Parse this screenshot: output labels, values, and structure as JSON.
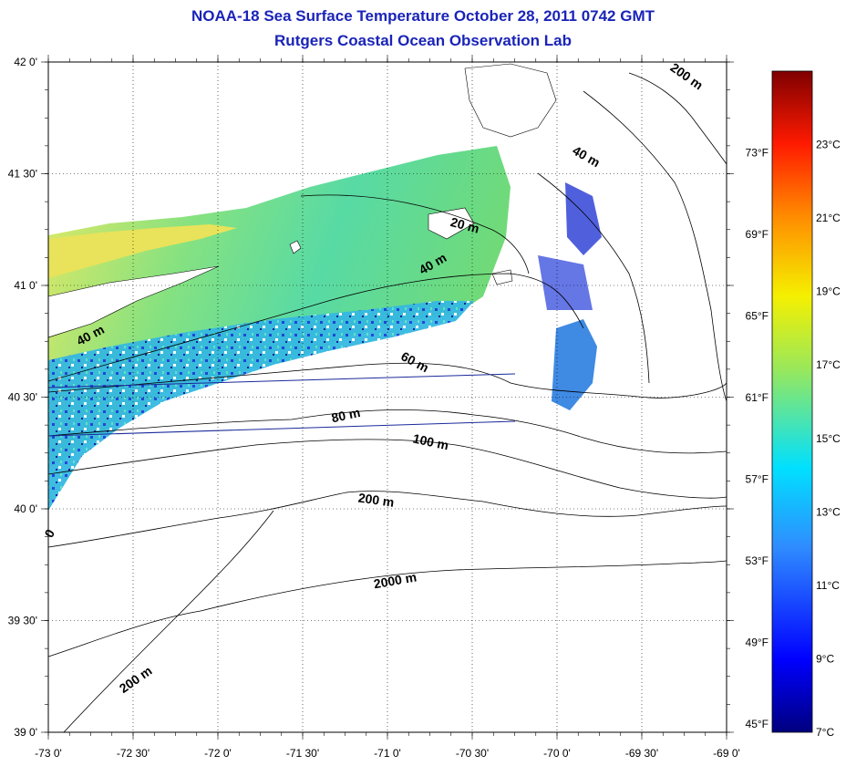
{
  "header": {
    "title": "NOAA-18 Sea Surface Temperature October 28, 2011 0742 GMT",
    "subtitle": "Rutgers Coastal Ocean Observation Lab"
  },
  "map": {
    "lon_range": [
      -73,
      -69
    ],
    "lat_range": [
      39,
      42
    ],
    "x_ticks": [
      {
        "lon": -73.0,
        "label": "-73 0'"
      },
      {
        "lon": -72.5,
        "label": "-72 30'"
      },
      {
        "lon": -72.0,
        "label": "-72 0'"
      },
      {
        "lon": -71.5,
        "label": "-71 30'"
      },
      {
        "lon": -71.0,
        "label": "-71 0'"
      },
      {
        "lon": -70.5,
        "label": "-70 30'"
      },
      {
        "lon": -70.0,
        "label": "-70 0'"
      },
      {
        "lon": -69.5,
        "label": "-69 30'"
      },
      {
        "lon": -69.0,
        "label": "-69 0'"
      }
    ],
    "y_ticks": [
      {
        "lat": 42.0,
        "label": "42 0'"
      },
      {
        "lat": 41.5,
        "label": "41 30'"
      },
      {
        "lat": 41.0,
        "label": "41 0'"
      },
      {
        "lat": 40.5,
        "label": "40 30'"
      },
      {
        "lat": 40.0,
        "label": "40 0'"
      },
      {
        "lat": 39.5,
        "label": "39 30'"
      },
      {
        "lat": 39.0,
        "label": "39 0'"
      }
    ],
    "contour_labels": [
      {
        "text": "20 m",
        "lon": -70.55,
        "lat": 41.25,
        "rotation": 15
      },
      {
        "text": "40 m",
        "lon": -70.72,
        "lat": 41.08,
        "rotation": -30
      },
      {
        "text": "40 m",
        "lon": -72.74,
        "lat": 40.76,
        "rotation": -28
      },
      {
        "text": "60 m",
        "lon": -70.85,
        "lat": 40.64,
        "rotation": 28
      },
      {
        "text": "80 m",
        "lon": -71.24,
        "lat": 40.4,
        "rotation": -12
      },
      {
        "text": "100 m",
        "lon": -70.75,
        "lat": 40.28,
        "rotation": 12
      },
      {
        "text": "200 m",
        "lon": -71.07,
        "lat": 40.02,
        "rotation": 8
      },
      {
        "text": "2000 m",
        "lon": -70.95,
        "lat": 39.66,
        "rotation": -10
      },
      {
        "text": "200 m",
        "lon": -72.47,
        "lat": 39.22,
        "rotation": -35
      },
      {
        "text": "40 m",
        "lon": -69.84,
        "lat": 41.56,
        "rotation": 30
      },
      {
        "text": "200 m",
        "lon": -69.25,
        "lat": 41.92,
        "rotation": 35
      },
      {
        "text": "0",
        "lon": -72.97,
        "lat": 39.88,
        "rotation": -60
      }
    ]
  },
  "colorbar": {
    "range_c": [
      7,
      25
    ],
    "celsius_ticks": [
      {
        "value": 23,
        "label": "23°C"
      },
      {
        "value": 21,
        "label": "21°C"
      },
      {
        "value": 19,
        "label": "19°C"
      },
      {
        "value": 17,
        "label": "17°C"
      },
      {
        "value": 15,
        "label": "15°C"
      },
      {
        "value": 13,
        "label": "13°C"
      },
      {
        "value": 11,
        "label": "11°C"
      },
      {
        "value": 9,
        "label": "9°C"
      },
      {
        "value": 7,
        "label": "7°C"
      }
    ],
    "fahrenheit_ticks": [
      {
        "value": 73,
        "label": "73°F"
      },
      {
        "value": 69,
        "label": "69°F"
      },
      {
        "value": 65,
        "label": "65°F"
      },
      {
        "value": 61,
        "label": "61°F"
      },
      {
        "value": 57,
        "label": "57°F"
      },
      {
        "value": 53,
        "label": "53°F"
      },
      {
        "value": 49,
        "label": "49°F"
      },
      {
        "value": 45,
        "label": "45°F"
      }
    ],
    "colors": {
      "dark_red": "#7f0000",
      "red": "#ff1a00",
      "orange": "#ff8c00",
      "yellow": "#f5f000",
      "light_green": "#9ae85a",
      "cyan": "#00e0ff",
      "light_blue": "#2f8cff",
      "blue": "#0000ff",
      "navy": "#00007f"
    }
  }
}
